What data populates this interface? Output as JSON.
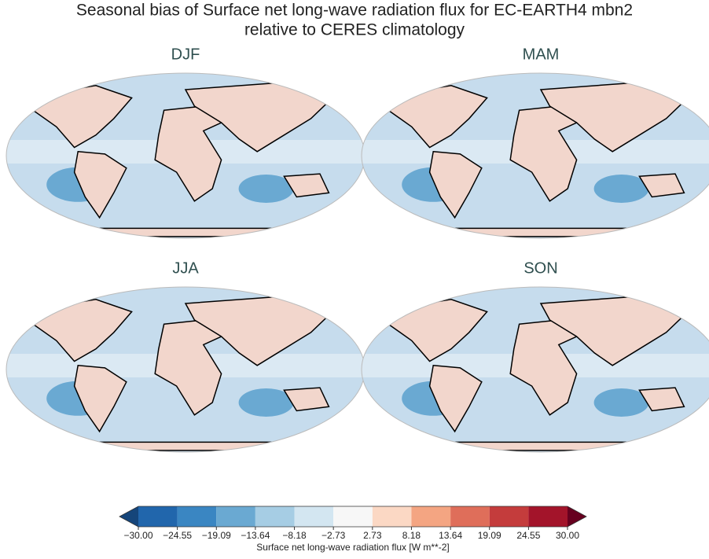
{
  "title_lines": [
    "Seasonal bias of Surface net long-wave radiation flux for EC-EARTH4 mbn2",
    "relative to CERES climatology"
  ],
  "panels": [
    {
      "title": "DJF"
    },
    {
      "title": "MAM"
    },
    {
      "title": "JJA"
    },
    {
      "title": "SON"
    }
  ],
  "colorbar": {
    "label": "Surface net long-wave radiation flux [W m**-2]",
    "extend": "both",
    "ticks": [
      {
        "value": -30,
        "label": "−30.00"
      },
      {
        "value": -24.55,
        "label": "−24.55"
      },
      {
        "value": -19.09,
        "label": "−19.09"
      },
      {
        "value": -13.64,
        "label": "−13.64"
      },
      {
        "value": -8.18,
        "label": "−8.18"
      },
      {
        "value": -2.73,
        "label": "−2.73"
      },
      {
        "value": 2.73,
        "label": "2.73"
      },
      {
        "value": 8.18,
        "label": "8.18"
      },
      {
        "value": 13.64,
        "label": "13.64"
      },
      {
        "value": 19.09,
        "label": "19.09"
      },
      {
        "value": 24.55,
        "label": "24.55"
      },
      {
        "value": 30,
        "label": "30.00"
      }
    ],
    "colors": [
      "#2166ac",
      "#3a86c2",
      "#6aa9d2",
      "#a6cde4",
      "#d3e6f1",
      "#f7f7f7",
      "#fbd8c4",
      "#f4a582",
      "#df6e5a",
      "#c43c3c",
      "#a3142a"
    ],
    "under_color": "#15457a",
    "over_color": "#67001f"
  }
}
